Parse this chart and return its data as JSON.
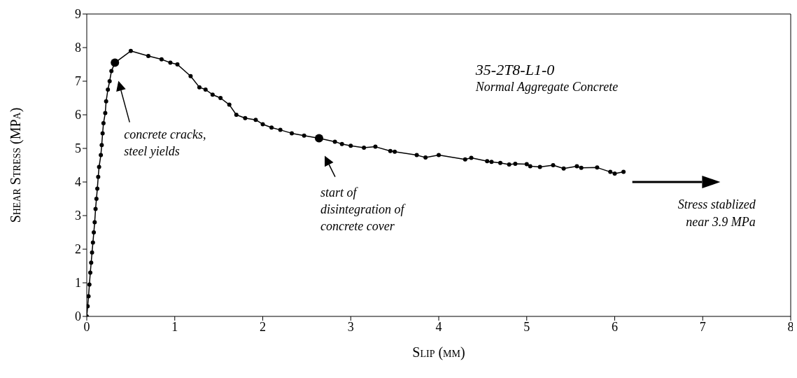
{
  "chart_data": {
    "type": "line",
    "title": "35-2T8-L1-0",
    "subtitle": "Normal Aggregate Concrete",
    "xlabel": "Slip (mm)",
    "ylabel": "Shear Stress (MPa)",
    "xlim": [
      0,
      8
    ],
    "xticks": [
      0,
      1,
      2,
      3,
      4,
      5,
      6,
      7,
      8
    ],
    "ylim": [
      0,
      9
    ],
    "yticks": [
      0,
      1,
      2,
      3,
      4,
      5,
      6,
      7,
      8,
      9
    ],
    "grid": false,
    "marker": "circle",
    "line_style": "solid",
    "series": [
      {
        "color": "#000000",
        "x": [
          0,
          0.01,
          0.02,
          0.03,
          0.04,
          0.05,
          0.06,
          0.07,
          0.08,
          0.09,
          0.1,
          0.11,
          0.12,
          0.13,
          0.14,
          0.16,
          0.17,
          0.18,
          0.19,
          0.21,
          0.22,
          0.24,
          0.26,
          0.28,
          0.32,
          0.5,
          0.7,
          0.85,
          0.95,
          1.03,
          1.18,
          1.28,
          1.35,
          1.43,
          1.52,
          1.62,
          1.7,
          1.8,
          1.92,
          2.0,
          2.1,
          2.2,
          2.33,
          2.47,
          2.64,
          2.82,
          2.9,
          3.0,
          3.15,
          3.28,
          3.45,
          3.5,
          3.75,
          3.85,
          4.0,
          4.3,
          4.37,
          4.55,
          4.6,
          4.7,
          4.8,
          4.87,
          5.0,
          5.04,
          5.15,
          5.3,
          5.42,
          5.57,
          5.62,
          5.8,
          5.95,
          6.0,
          6.1
        ],
        "values": [
          0,
          0.3,
          0.6,
          0.95,
          1.3,
          1.6,
          1.9,
          2.2,
          2.5,
          2.8,
          3.2,
          3.5,
          3.8,
          4.15,
          4.45,
          4.8,
          5.1,
          5.45,
          5.75,
          6.05,
          6.4,
          6.75,
          7.0,
          7.3,
          7.55,
          7.9,
          7.75,
          7.65,
          7.55,
          7.5,
          7.15,
          6.82,
          6.75,
          6.6,
          6.5,
          6.3,
          6.0,
          5.9,
          5.85,
          5.72,
          5.62,
          5.55,
          5.45,
          5.38,
          5.3,
          5.2,
          5.13,
          5.08,
          5.02,
          5.05,
          4.92,
          4.9,
          4.8,
          4.73,
          4.8,
          4.67,
          4.72,
          4.62,
          4.6,
          4.57,
          4.52,
          4.54,
          4.53,
          4.47,
          4.45,
          4.5,
          4.4,
          4.47,
          4.42,
          4.43,
          4.3,
          4.25,
          4.3
        ]
      },
      {
        "type": "scatter",
        "color": "#000000",
        "x": [
          0.32,
          2.64
        ],
        "values": [
          7.55,
          5.3
        ]
      }
    ],
    "annotations": [
      "concrete cracks,\nsteel yields",
      "start of\ndisintegration of\nconcrete cover",
      "Stress stablized\nnear 3.9 MPa"
    ]
  }
}
